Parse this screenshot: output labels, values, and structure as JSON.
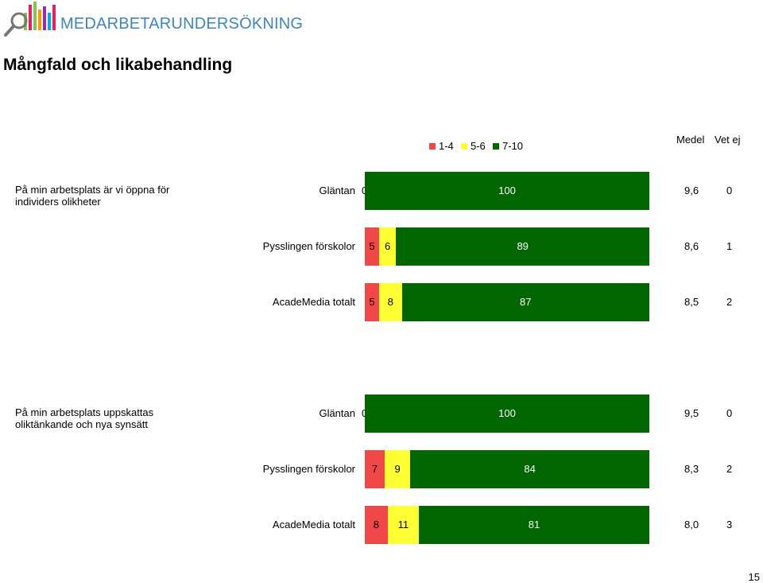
{
  "header": {
    "brand": "MEDARBETARUNDERSÖKNING",
    "logo_icon": "magnifier-bars-icon",
    "page_title": "Mångfald och likabehandling"
  },
  "legend": {
    "items": [
      {
        "label": "1-4",
        "color": "#f04848"
      },
      {
        "label": "5-6",
        "color": "#ffff33"
      },
      {
        "label": "7-10",
        "color": "#006600"
      }
    ]
  },
  "columns": {
    "medel": "Medel",
    "vet_ej": "Vet ej"
  },
  "chart_data": {
    "type": "bar",
    "orientation": "horizontal-stacked-100",
    "categories": [
      "1-4",
      "5-6",
      "7-10"
    ],
    "questions": [
      {
        "text": "På min arbetsplats är vi öppna för individers olikheter",
        "rows": [
          {
            "label": "Gläntan",
            "values": [
              0,
              0,
              100
            ],
            "medel": "9,6",
            "vet_ej": "0",
            "zero_label": "0"
          },
          {
            "label": "Pysslingen förskolor",
            "values": [
              5,
              6,
              89
            ],
            "medel": "8,6",
            "vet_ej": "1"
          },
          {
            "label": "AcadeMedia totalt",
            "values": [
              5,
              8,
              87
            ],
            "medel": "8,5",
            "vet_ej": "2"
          }
        ]
      },
      {
        "text": "På min arbetsplats uppskattas oliktänkande och nya synsätt",
        "rows": [
          {
            "label": "Gläntan",
            "values": [
              0,
              0,
              100
            ],
            "medel": "9,5",
            "vet_ej": "0",
            "zero_label": "0"
          },
          {
            "label": "Pysslingen förskolor",
            "values": [
              7,
              9,
              84
            ],
            "medel": "8,3",
            "vet_ej": "2"
          },
          {
            "label": "AcadeMedia totalt",
            "values": [
              8,
              11,
              81
            ],
            "medel": "8,0",
            "vet_ej": "3"
          }
        ]
      }
    ],
    "xlim": [
      0,
      100
    ],
    "grid": false,
    "legend_position": "top-right"
  },
  "footer": {
    "page_number": "15"
  }
}
